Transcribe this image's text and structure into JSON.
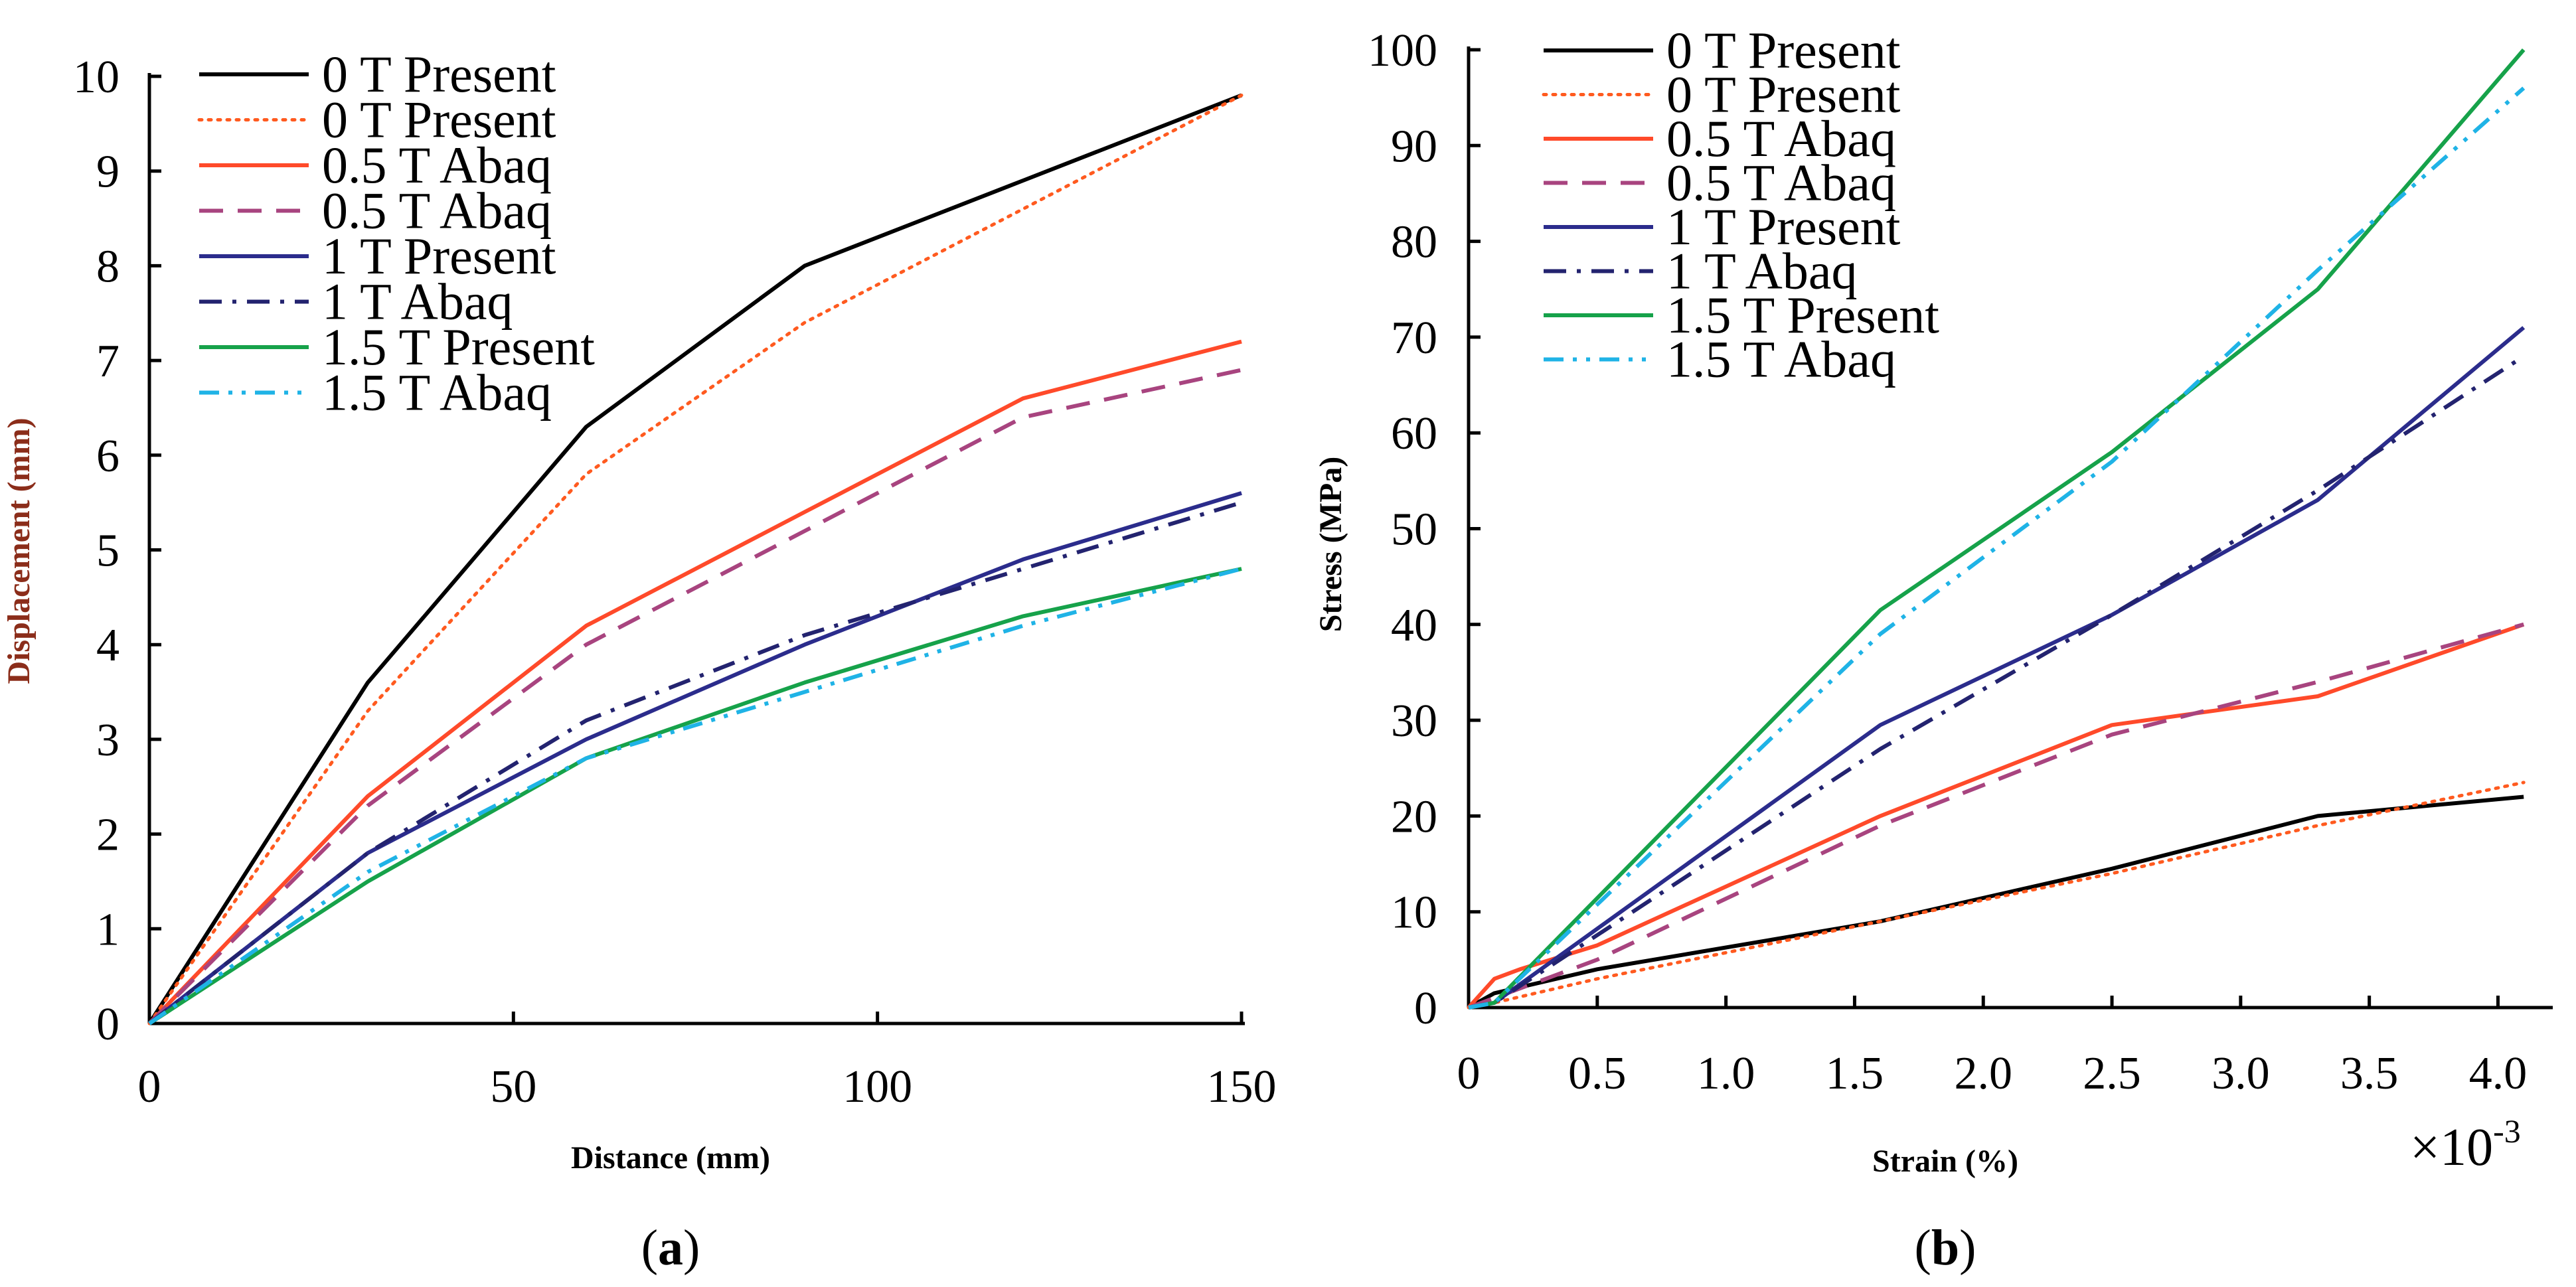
{
  "chart_data": [
    {
      "type": "line",
      "panel_label": "(a)",
      "panel_letter": "a",
      "title": "",
      "xlabel": "Distance (mm)",
      "ylabel": "Displacement (mm)",
      "xlim": [
        0,
        150
      ],
      "ylim": [
        0,
        10
      ],
      "xticks": [
        0,
        50,
        100,
        150
      ],
      "xtick_labels": [
        "0",
        "50",
        "100",
        "150"
      ],
      "yticks": [
        0,
        1,
        2,
        3,
        4,
        5,
        6,
        7,
        8,
        9,
        10
      ],
      "ytick_labels": [
        "0",
        "1",
        "2",
        "3",
        "4",
        "5",
        "6",
        "7",
        "8",
        "9",
        "10"
      ],
      "grid": false,
      "legend_position": "top-center",
      "series": [
        {
          "name": "0 T Present",
          "color": "#000000",
          "style": "solid",
          "x": [
            0,
            30,
            60,
            90,
            120,
            150
          ],
          "y": [
            0,
            3.6,
            6.3,
            8.0,
            8.9,
            9.8
          ]
        },
        {
          "name": "0 T Present",
          "color": "#ff5a1f",
          "style": "dotted",
          "x": [
            0,
            30,
            60,
            90,
            120,
            150
          ],
          "y": [
            0,
            3.3,
            5.8,
            7.4,
            8.6,
            9.8
          ]
        },
        {
          "name": "0.5 T Abaq",
          "color": "#ff4a2a",
          "style": "solid",
          "x": [
            0,
            30,
            60,
            90,
            120,
            150
          ],
          "y": [
            0,
            2.4,
            4.2,
            5.4,
            6.6,
            7.2
          ]
        },
        {
          "name": "0.5 T Abaq",
          "color": "#a8447f",
          "style": "dashed",
          "x": [
            0,
            30,
            60,
            90,
            120,
            150
          ],
          "y": [
            0,
            2.3,
            4.0,
            5.2,
            6.4,
            6.9
          ]
        },
        {
          "name": "1 T Present",
          "color": "#2b2c8c",
          "style": "solid",
          "x": [
            0,
            30,
            60,
            90,
            120,
            150
          ],
          "y": [
            0,
            1.8,
            3.0,
            4.0,
            4.9,
            5.6
          ]
        },
        {
          "name": "1 T Abaq",
          "color": "#23236f",
          "style": "dashdot",
          "x": [
            0,
            30,
            60,
            90,
            120,
            150
          ],
          "y": [
            0,
            1.8,
            3.2,
            4.1,
            4.8,
            5.5
          ]
        },
        {
          "name": "1.5 T Present",
          "color": "#16a24a",
          "style": "solid",
          "x": [
            0,
            30,
            60,
            90,
            120,
            150
          ],
          "y": [
            0,
            1.5,
            2.8,
            3.6,
            4.3,
            4.8
          ]
        },
        {
          "name": "1.5 T Abaq",
          "color": "#1fb3e6",
          "style": "dashdotdot",
          "x": [
            0,
            30,
            60,
            90,
            120,
            150
          ],
          "y": [
            0,
            1.6,
            2.8,
            3.5,
            4.2,
            4.8
          ]
        }
      ]
    },
    {
      "type": "line",
      "panel_label": "(b)",
      "panel_letter": "b",
      "title": "",
      "xlabel": "Strain (%)",
      "ylabel": "Stress (MPa)",
      "x_scale_label": "×10",
      "x_scale_exponent": "-3",
      "xlim": [
        0,
        4.2
      ],
      "ylim": [
        0,
        100
      ],
      "xticks": [
        0,
        0.5,
        1.0,
        1.5,
        2.0,
        2.5,
        3.0,
        3.5,
        4.0
      ],
      "xtick_labels": [
        "0",
        "0.5",
        "1.0",
        "1.5",
        "2.0",
        "2.5",
        "3.0",
        "3.5",
        "4.0"
      ],
      "yticks": [
        0,
        10,
        20,
        30,
        40,
        50,
        60,
        70,
        80,
        90,
        100
      ],
      "ytick_labels": [
        "0",
        "10",
        "20",
        "30",
        "40",
        "50",
        "60",
        "70",
        "80",
        "90",
        "100"
      ],
      "grid": false,
      "legend_position": "top-center",
      "series": [
        {
          "name": "0 T Present",
          "color": "#000000",
          "style": "solid",
          "x": [
            0,
            0.1,
            0.5,
            1.6,
            2.5,
            3.3,
            4.1
          ],
          "y": [
            0,
            1.5,
            4,
            9,
            14.5,
            20,
            22
          ]
        },
        {
          "name": "0 T Present",
          "color": "#ff5a1f",
          "style": "dotted",
          "x": [
            0,
            0.1,
            0.5,
            1.6,
            2.5,
            3.3,
            4.1
          ],
          "y": [
            0,
            0.5,
            3,
            9,
            14,
            19,
            23.5
          ]
        },
        {
          "name": "0.5 T Abaq",
          "color": "#ff4a2a",
          "style": "solid",
          "x": [
            0,
            0.1,
            0.2,
            0.5,
            1.6,
            2.5,
            3.3,
            4.1
          ],
          "y": [
            0,
            3,
            4,
            6.5,
            20,
            29.5,
            32.5,
            40
          ]
        },
        {
          "name": "0.5 T Abaq",
          "color": "#a8447f",
          "style": "dashed",
          "x": [
            0,
            0.1,
            0.5,
            1.6,
            2.5,
            3.3,
            4.1
          ],
          "y": [
            0,
            1,
            5,
            19,
            28.5,
            34,
            40
          ]
        },
        {
          "name": "1 T Present",
          "color": "#2b2c8c",
          "style": "solid",
          "x": [
            0,
            0.1,
            1.6,
            2.5,
            3.3,
            4.1
          ],
          "y": [
            0,
            0.5,
            29.5,
            41,
            53,
            71
          ]
        },
        {
          "name": "1 T Abaq",
          "color": "#23236f",
          "style": "dashdot",
          "x": [
            0,
            0.1,
            1.6,
            2.5,
            3.3,
            4.1
          ],
          "y": [
            0,
            0.5,
            27,
            41,
            54,
            68
          ]
        },
        {
          "name": "1.5 T Present",
          "color": "#16a24a",
          "style": "solid",
          "x": [
            0,
            0.1,
            1.6,
            2.5,
            3.3,
            4.1
          ],
          "y": [
            0,
            0.5,
            41.5,
            58,
            75,
            100
          ]
        },
        {
          "name": "1.5 T Abaq",
          "color": "#1fb3e6",
          "style": "dashdotdot",
          "x": [
            0,
            0.1,
            1.6,
            2.5,
            3.3,
            4.1
          ],
          "y": [
            0,
            0.5,
            39,
            57,
            77,
            96
          ]
        }
      ]
    }
  ]
}
